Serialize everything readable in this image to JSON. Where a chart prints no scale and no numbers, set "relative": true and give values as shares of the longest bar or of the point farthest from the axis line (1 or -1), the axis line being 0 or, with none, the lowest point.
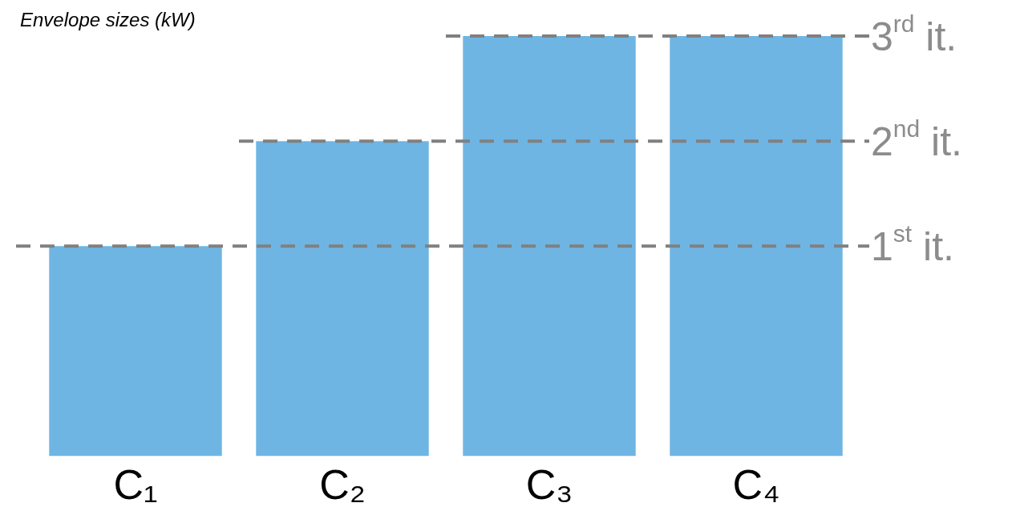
{
  "chart_data": {
    "type": "bar",
    "title": "Envelope sizes (kW)",
    "relative": true,
    "categories": [
      "C₁",
      "C₂",
      "C₃",
      "C₄"
    ],
    "values": [
      0.5,
      0.75,
      1,
      1
    ],
    "color": "#6fb5e4",
    "ref_lines": [
      {
        "axis": "y",
        "value": 0.5,
        "label": "1$^{st}$ it.",
        "color": "#808080",
        "line_style": "dashed"
      },
      {
        "axis": "y",
        "value": 0.75,
        "label": "2$^{nd}$ it.",
        "color": "#808080",
        "line_style": "dashed"
      },
      {
        "axis": "y",
        "value": 1,
        "label": "3$^{rd}$ it.",
        "color": "#808080",
        "line_style": "dashed"
      }
    ],
    "grid": false,
    "legend": false
  }
}
